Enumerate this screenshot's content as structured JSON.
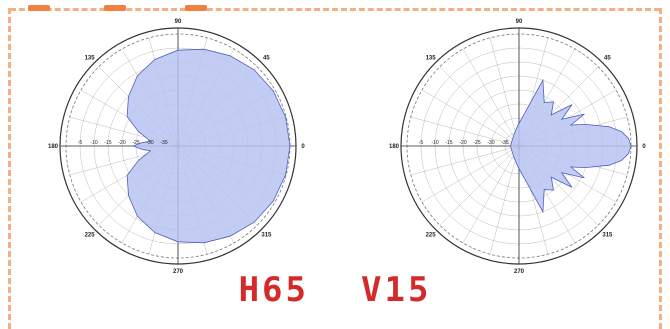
{
  "colors": {
    "pattern_fill": "#b9c3f0",
    "pattern_stroke": "#4e5fbf",
    "grid": "#888888",
    "caption": "#d42a2a",
    "border": "#f4b084"
  },
  "caption": {
    "horizontal": "H65",
    "vertical": "V15"
  },
  "chart_data": [
    {
      "type": "polar-area",
      "title": "",
      "rlim_db": [
        -40,
        0
      ],
      "rings_db": [
        -5,
        -10,
        -15,
        -20,
        -25,
        -30,
        -35
      ],
      "radial_tick_labels": [
        "-5",
        "-10",
        "-15",
        "-20",
        "-25",
        "-30",
        "-35"
      ],
      "angle_labels": {
        "0": "0",
        "45": "45",
        "90": "90",
        "135": "135",
        "180": "180",
        "225": "225",
        "270": "270",
        "315": "315"
      },
      "angles_deg": [
        0,
        15,
        30,
        45,
        60,
        75,
        90,
        105,
        120,
        135,
        150,
        160,
        170,
        175,
        180,
        185,
        190,
        200,
        210,
        225,
        240,
        255,
        270,
        285,
        300,
        315,
        330,
        345,
        360
      ],
      "gain_db": [
        0,
        -0.2,
        -0.7,
        -1.5,
        -2.8,
        -4.2,
        -5.8,
        -8,
        -11,
        -15,
        -19,
        -25,
        -30,
        -27,
        -24,
        -27,
        -30,
        -25,
        -19,
        -15,
        -11,
        -8,
        -5.8,
        -4.2,
        -2.8,
        -1.5,
        -0.7,
        -0.2,
        0
      ]
    },
    {
      "type": "polar-area",
      "title": "",
      "rlim_db": [
        -40,
        0
      ],
      "rings_db": [
        -5,
        -10,
        -15,
        -20,
        -25,
        -30,
        -35
      ],
      "radial_tick_labels": [
        "-5",
        "-10",
        "-15",
        "-20",
        "-25",
        "-30",
        "-35"
      ],
      "angle_labels": {
        "0": "0",
        "45": "45",
        "90": "90",
        "135": "135",
        "180": "180",
        "225": "225",
        "270": "270",
        "315": "315"
      },
      "angles_deg": [
        0,
        4,
        8,
        12,
        18,
        22,
        26,
        32,
        38,
        44,
        52,
        60,
        70,
        80,
        95,
        120,
        150,
        180,
        210,
        240,
        265,
        280,
        290,
        300,
        308,
        316,
        322,
        328,
        334,
        338,
        342,
        348,
        352,
        356,
        360
      ],
      "gain_db": [
        0,
        -0.8,
        -3,
        -7,
        -15,
        -20,
        -14,
        -22,
        -16,
        -24,
        -20,
        -22,
        -15,
        -28,
        -33,
        -36,
        -37,
        -37,
        -37,
        -36,
        -33,
        -28,
        -15,
        -22,
        -20,
        -24,
        -16,
        -22,
        -14,
        -20,
        -15,
        -7,
        -3,
        -0.8,
        0
      ]
    }
  ]
}
